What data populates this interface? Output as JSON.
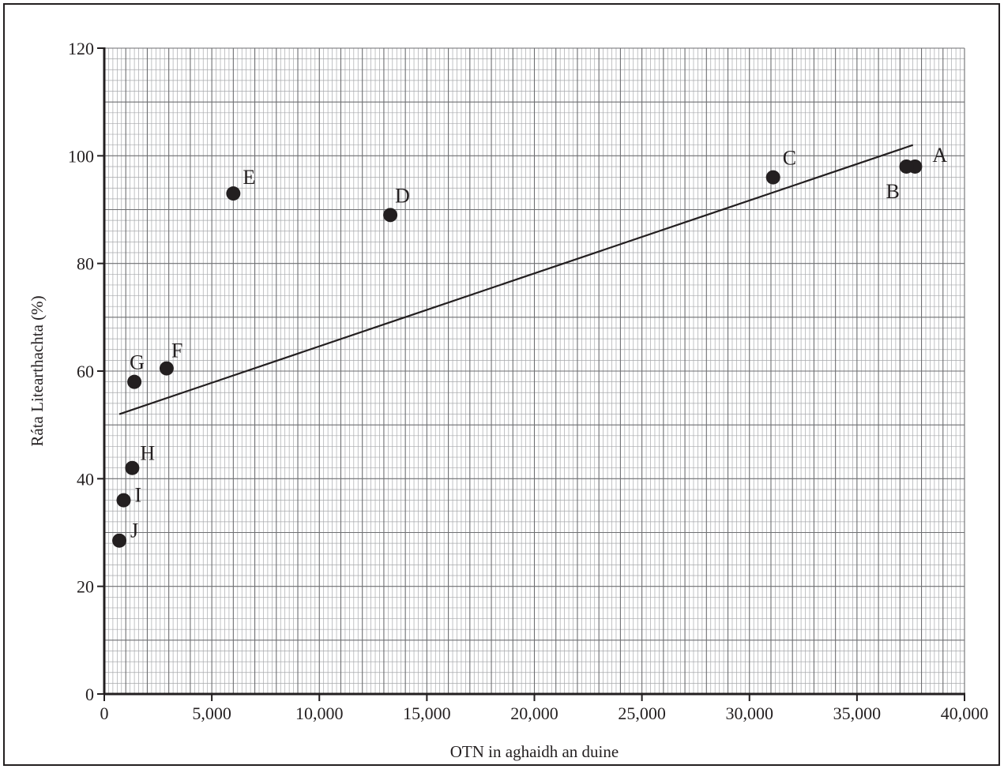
{
  "chart_data": {
    "type": "scatter",
    "xlabel": "OTN in aghaidh an duine",
    "ylabel": "Ráta Litearthachta (%)",
    "xlim": [
      0,
      40000
    ],
    "ylim": [
      0,
      120
    ],
    "x_ticks": [
      0,
      5000,
      10000,
      15000,
      20000,
      25000,
      30000,
      35000,
      40000
    ],
    "x_tick_labels": [
      "0",
      "5,000",
      "10,000",
      "15,000",
      "20,000",
      "25,000",
      "30,000",
      "35,000",
      "40,000"
    ],
    "y_ticks": [
      0,
      20,
      40,
      60,
      80,
      100,
      120
    ],
    "y_tick_labels": [
      "0",
      "20",
      "40",
      "60",
      "80",
      "100",
      "120"
    ],
    "grid": true,
    "legend": "none",
    "points": [
      {
        "label": "A",
        "x": 37700,
        "y": 98
      },
      {
        "label": "B",
        "x": 37300,
        "y": 98
      },
      {
        "label": "C",
        "x": 31100,
        "y": 96
      },
      {
        "label": "D",
        "x": 13300,
        "y": 89
      },
      {
        "label": "E",
        "x": 6000,
        "y": 93
      },
      {
        "label": "F",
        "x": 2900,
        "y": 60.5
      },
      {
        "label": "G",
        "x": 1400,
        "y": 58
      },
      {
        "label": "H",
        "x": 1300,
        "y": 42
      },
      {
        "label": "I",
        "x": 900,
        "y": 36
      },
      {
        "label": "J",
        "x": 700,
        "y": 28.5
      }
    ],
    "trend_line": {
      "x": [
        700,
        37600
      ],
      "y": [
        52,
        102
      ]
    },
    "colors": {
      "ink": "#231f20",
      "grid_major": "#6d6e71",
      "grid_minor": "#a7a9ac"
    }
  }
}
